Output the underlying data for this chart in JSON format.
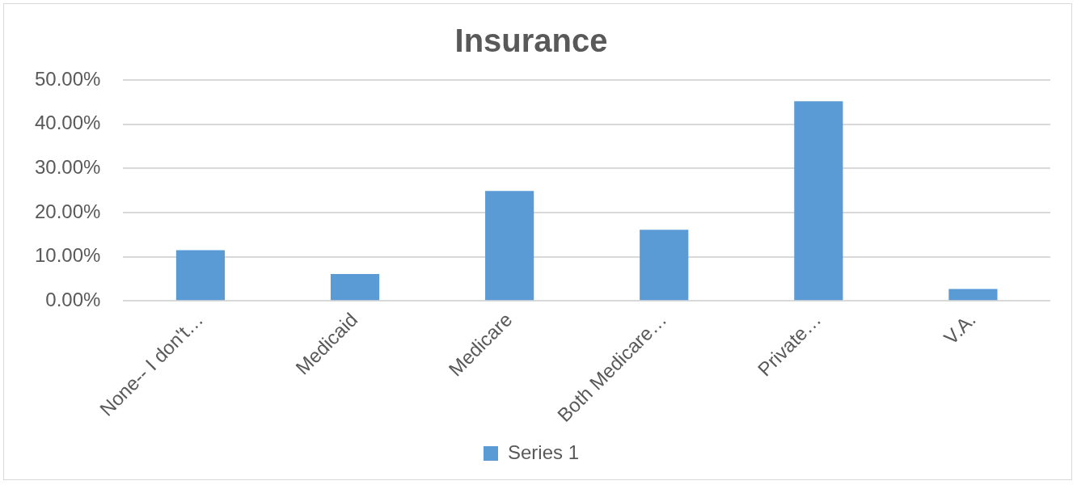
{
  "chart_data": {
    "type": "bar",
    "title": "Insurance",
    "categories": [
      "None-- I don't…",
      "Medicaid",
      "Medicare",
      "Both Medicare…",
      "Private…",
      "V.A."
    ],
    "series": [
      {
        "name": "Series 1",
        "color": "#5b9bd5",
        "values": [
          11.5,
          6.1,
          24.9,
          16.1,
          45.2,
          2.7
        ]
      }
    ],
    "ylim": [
      0,
      50
    ],
    "yticks": [
      {
        "value": 0,
        "label": "0.00%"
      },
      {
        "value": 10,
        "label": "10.00%"
      },
      {
        "value": 20,
        "label": "20.00%"
      },
      {
        "value": 30,
        "label": "30.00%"
      },
      {
        "value": 40,
        "label": "40.00%"
      },
      {
        "value": 50,
        "label": "50.00%"
      }
    ],
    "grid": "y",
    "legend": "bottom"
  }
}
